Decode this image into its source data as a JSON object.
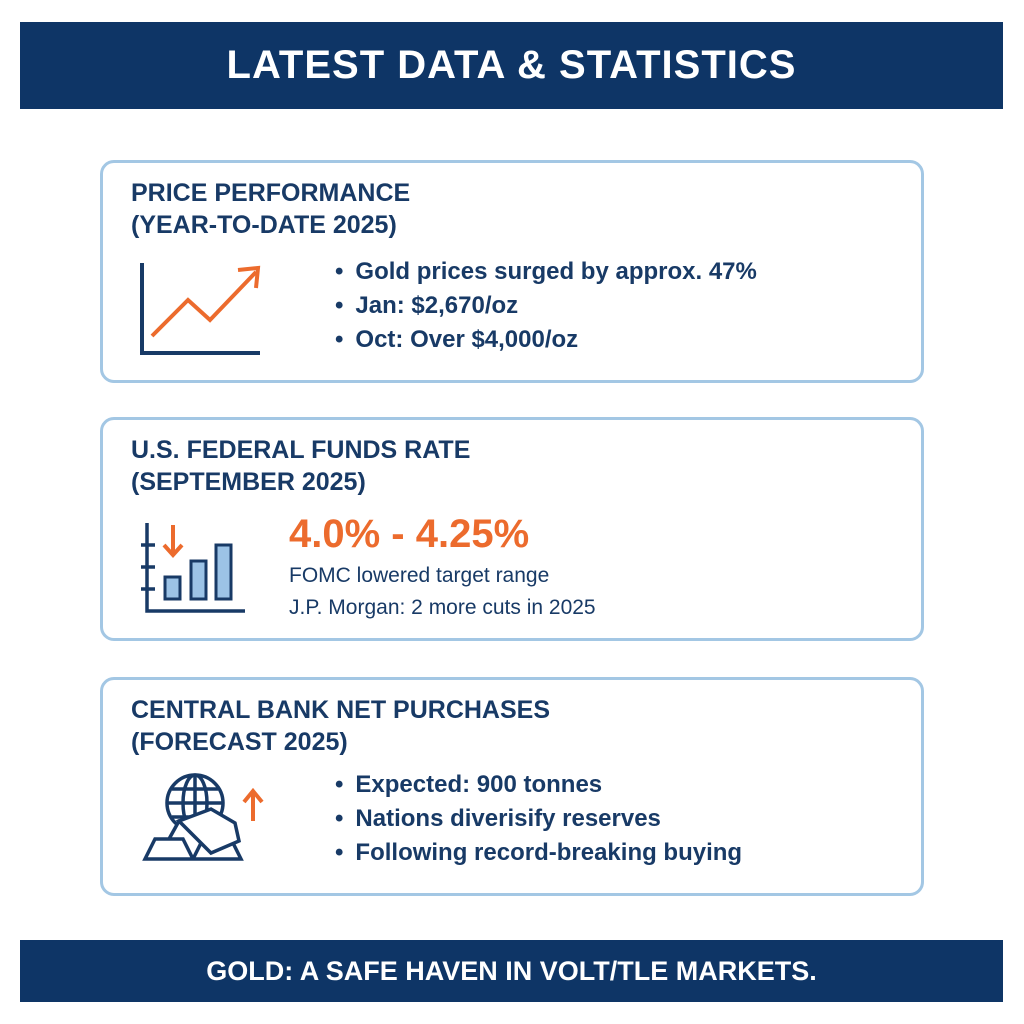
{
  "header": {
    "title": "LATEST DATA & STATISTICS"
  },
  "cards": [
    {
      "title_line1": "PRICE PERFORMANCE",
      "title_line2": "(YEAR-TO-DATE 2025)",
      "icon": "line-chart-up-icon",
      "bullets": [
        "Gold prices surged by approx. 47%",
        "Jan: $2,670/oz",
        "Oct: Over $4,000/oz"
      ]
    },
    {
      "title_line1": "U.S. FEDERAL FUNDS RATE",
      "title_line2": "(SEPTEMBER 2025)",
      "icon": "bar-chart-down-icon",
      "highlight": "4.0% - 4.25%",
      "lines": [
        "FOMC lowered target range",
        "J.P. Morgan: 2 more cuts in 2025"
      ]
    },
    {
      "title_line1": "CENTRAL BANK NET PURCHASES",
      "title_line2": "(FORECAST 2025)",
      "icon": "globe-gold-bars-up-icon",
      "bullets": [
        "Expected: 900 tonnes",
        "Nations diverisify reserves",
        "Following record-breaking buying"
      ]
    }
  ],
  "footer": {
    "text": "GOLD: A SAFE HAVEN IN VOLT/TLE MARKETS."
  },
  "colors": {
    "navy": "#0e3566",
    "accent": "#ec6b2d",
    "border": "#a3c7e4"
  }
}
